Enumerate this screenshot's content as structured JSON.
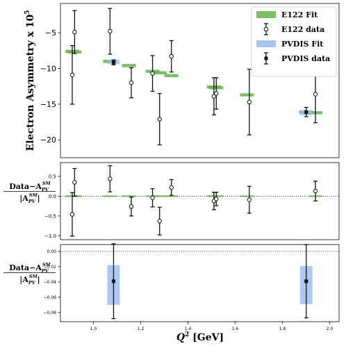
{
  "chart_data": [
    {
      "type": "scatter",
      "panel": "asymmetry",
      "ylabel": "Electron Asymmetry x 10",
      "ylabel_exp": "5",
      "xlim": [
        0.86,
        2.04
      ],
      "ylim": [
        -22.5,
        -0.9
      ],
      "yticks": [
        -5,
        -10,
        -15,
        -20
      ],
      "ytick_labels": [
        "−5",
        "−10",
        "−15",
        "−20"
      ],
      "legend": {
        "placement": "top-right",
        "entries": [
          {
            "label": "E122 Fit",
            "kind": "patch",
            "color": "#66b34f"
          },
          {
            "label": "E122 data",
            "kind": "open-marker"
          },
          {
            "label": "PVDIS Fit",
            "kind": "patch",
            "color": "#99bbee"
          },
          {
            "label": "PVDIS data",
            "kind": "filled-marker"
          }
        ]
      },
      "series": [
        {
          "name": "E122 Fit",
          "color": "#66b34f",
          "points": [
            {
              "x": 0.91,
              "y": -7.6
            },
            {
              "x": 0.92,
              "y": -7.7
            },
            {
              "x": 1.07,
              "y": -9.0
            },
            {
              "x": 1.15,
              "y": -9.6
            },
            {
              "x": 1.25,
              "y": -10.4
            },
            {
              "x": 1.28,
              "y": -10.6
            },
            {
              "x": 1.33,
              "y": -11.0
            },
            {
              "x": 1.51,
              "y": -12.6
            },
            {
              "x": 1.52,
              "y": -12.7
            },
            {
              "x": 1.65,
              "y": -13.7
            },
            {
              "x": 1.9,
              "y": -16.1
            },
            {
              "x": 1.94,
              "y": -16.2
            }
          ]
        },
        {
          "name": "E122 data",
          "points": [
            {
              "x": 0.91,
              "y": -10.9,
              "err": 4.1
            },
            {
              "x": 0.92,
              "y": -4.9,
              "err": 3.0
            },
            {
              "x": 1.07,
              "y": -4.8,
              "err": 3.2
            },
            {
              "x": 1.16,
              "y": -12.0,
              "err": 2.1
            },
            {
              "x": 1.25,
              "y": -10.7,
              "err": 2.5
            },
            {
              "x": 1.28,
              "y": -17.1,
              "err": 3.6
            },
            {
              "x": 1.33,
              "y": -8.3,
              "err": 2.2
            },
            {
              "x": 1.51,
              "y": -13.9,
              "err": 2.6
            },
            {
              "x": 1.52,
              "y": -13.5,
              "err": 2.2
            },
            {
              "x": 1.66,
              "y": -14.7,
              "err": 4.6
            },
            {
              "x": 1.94,
              "y": -13.6,
              "err": 4.0
            }
          ]
        },
        {
          "name": "PVDIS Fit",
          "color": "#99bbee",
          "points": [
            {
              "x": 1.085,
              "y": -9.1,
              "err": 0.3
            },
            {
              "x": 1.901,
              "y": -16.2,
              "err": 0.35
            }
          ]
        },
        {
          "name": "PVDIS data",
          "points": [
            {
              "x": 1.085,
              "y": -9.15,
              "err": 0.35
            },
            {
              "x": 1.901,
              "y": -16.1,
              "err": 0.65
            }
          ]
        }
      ]
    },
    {
      "type": "scatter",
      "panel": "e122-relative",
      "ylabel_num": "Data−A",
      "ylabel_den": "|A",
      "ylabel_sup": "SM",
      "ylabel_sub": "PV",
      "ylim": [
        -1.1,
        0.85
      ],
      "yticks": [
        0.5,
        0.0,
        -0.5,
        -1.0
      ],
      "ytick_labels": [
        "0.5",
        "0.0",
        "−0.5",
        "−1.0"
      ],
      "series": [
        {
          "name": "E122 Fit",
          "color": "#66b34f",
          "points": [
            {
              "x": 0.91,
              "y": 0.0
            },
            {
              "x": 0.92,
              "y": 0.0
            },
            {
              "x": 1.07,
              "y": 0.0
            },
            {
              "x": 1.15,
              "y": 0.0
            },
            {
              "x": 1.25,
              "y": 0.0
            },
            {
              "x": 1.28,
              "y": 0.0
            },
            {
              "x": 1.33,
              "y": 0.0
            },
            {
              "x": 1.51,
              "y": 0.0
            },
            {
              "x": 1.52,
              "y": 0.0
            },
            {
              "x": 1.65,
              "y": 0.0
            },
            {
              "x": 1.94,
              "y": 0.0
            }
          ]
        },
        {
          "name": "E122 data",
          "points": [
            {
              "x": 0.91,
              "y": -0.46,
              "err": 0.55
            },
            {
              "x": 0.92,
              "y": 0.35,
              "err": 0.35
            },
            {
              "x": 1.07,
              "y": 0.44,
              "err": 0.33
            },
            {
              "x": 1.16,
              "y": -0.26,
              "err": 0.24
            },
            {
              "x": 1.25,
              "y": -0.04,
              "err": 0.23
            },
            {
              "x": 1.28,
              "y": -0.63,
              "err": 0.35
            },
            {
              "x": 1.33,
              "y": 0.22,
              "err": 0.2
            },
            {
              "x": 1.51,
              "y": -0.12,
              "err": 0.22
            },
            {
              "x": 1.52,
              "y": -0.07,
              "err": 0.17
            },
            {
              "x": 1.66,
              "y": -0.09,
              "err": 0.34
            },
            {
              "x": 1.94,
              "y": 0.13,
              "err": 0.25
            }
          ]
        }
      ]
    },
    {
      "type": "scatter",
      "panel": "pvdis-relative",
      "ylabel_num": "Data−A",
      "ylabel_den": "|A",
      "ylabel_sup": "SM",
      "ylabel_sub": "PV",
      "xlabel": "Q",
      "xlabel_exp": "2",
      "xlabel_unit": " [GeV]",
      "ylim": [
        -0.092,
        0.009
      ],
      "yticks": [
        0.0,
        -0.02,
        -0.04,
        -0.06,
        -0.08
      ],
      "ytick_labels": [
        "0.00",
        "−0.02",
        "−0.04",
        "−0.06",
        "−0.08"
      ],
      "xticks": [
        1.0,
        1.2,
        1.4,
        1.6,
        1.8,
        2.0
      ],
      "xtick_labels": [
        "1.0",
        "1.2",
        "1.4",
        "1.6",
        "1.8",
        "2.0"
      ],
      "series": [
        {
          "name": "PVDIS Fit",
          "color": "#99bbee",
          "points": [
            {
              "x": 1.085,
              "y": -0.044,
              "err": 0.026
            },
            {
              "x": 1.901,
              "y": -0.044,
              "err": 0.025
            }
          ]
        },
        {
          "name": "PVDIS data",
          "points": [
            {
              "x": 1.085,
              "y": -0.039,
              "err": 0.049
            },
            {
              "x": 1.901,
              "y": -0.039,
              "err": 0.048
            }
          ]
        }
      ]
    }
  ]
}
